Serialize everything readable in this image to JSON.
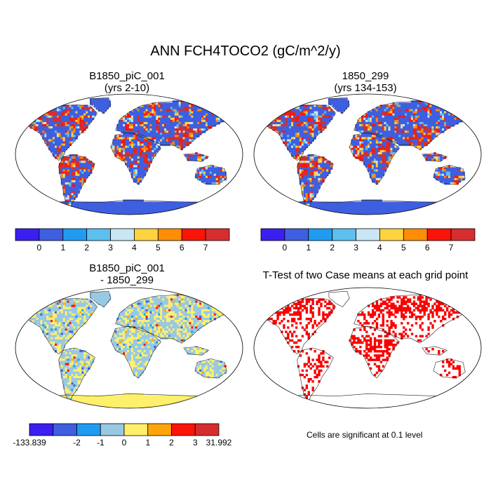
{
  "main_title": "ANN FCH4TOCO2 (gC/m^2/y)",
  "panels": [
    {
      "id": "top-left",
      "title_line1": "B1850_piC_001",
      "title_line2": "(yrs 2-10)",
      "ocean_color": "#ffffff",
      "land_base_color": "#3e5fe0",
      "colorbar": {
        "colors": [
          "#3a1ff0",
          "#3e5fe0",
          "#1f9cf2",
          "#5cc0ee",
          "#c8e6f4",
          "#fed33f",
          "#fe8c07",
          "#fb1408",
          "#d62e2e"
        ],
        "labels": [
          "0",
          "1",
          "2",
          "3",
          "4",
          "5",
          "6",
          "7"
        ]
      }
    },
    {
      "id": "top-right",
      "title_line1": "1850_299",
      "title_line2": "(yrs 134-153)",
      "ocean_color": "#ffffff",
      "land_base_color": "#3e5fe0",
      "colorbar": {
        "colors": [
          "#3a1ff0",
          "#3e5fe0",
          "#1f9cf2",
          "#5cc0ee",
          "#c8e6f4",
          "#fed33f",
          "#fe8c07",
          "#fb1408",
          "#d62e2e"
        ],
        "labels": [
          "0",
          "1",
          "2",
          "3",
          "4",
          "5",
          "6",
          "7"
        ]
      }
    },
    {
      "id": "bottom-left",
      "title_line1": "B1850_piC_001",
      "title_line2": "- 1850_299",
      "ocean_color": "#ffffff",
      "land_base_color": "#98c8e4",
      "colorbar": {
        "colors": [
          "#3a1ff0",
          "#3e5fe0",
          "#1f9cf2",
          "#98c8e4",
          "#fff06b",
          "#fea50b",
          "#fb1408",
          "#d62e2e"
        ],
        "labels": [
          "-133.839",
          "-2",
          "-1",
          "0",
          "1",
          "2",
          "3",
          "31.992"
        ]
      }
    },
    {
      "id": "bottom-right",
      "title_line1": "T-Test of two Case means at each grid point",
      "title_line2": "",
      "ocean_color": "#ffffff",
      "land_base_color": "#ffffff",
      "significance_color": "#fb0000",
      "note": "Cells are significant at 0.1 level"
    }
  ]
}
